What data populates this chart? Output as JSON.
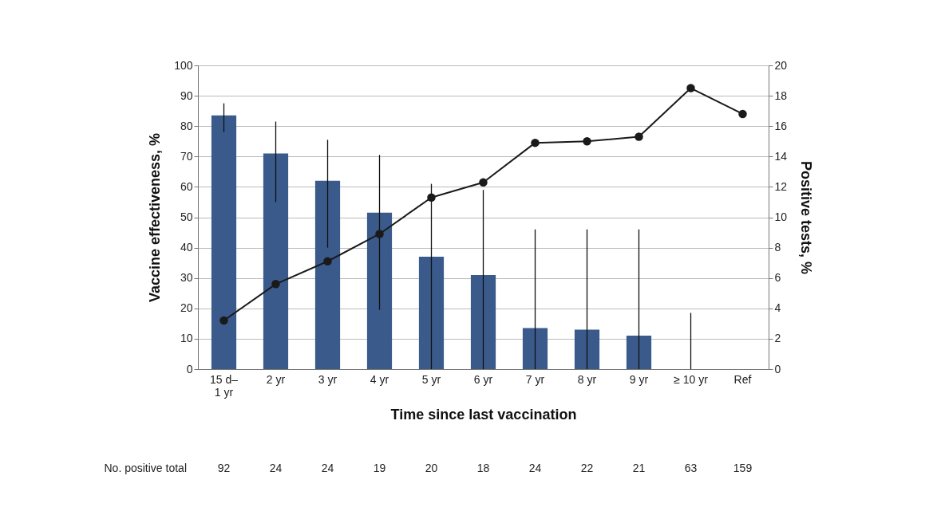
{
  "chart_data": {
    "type": "bar",
    "categories": [
      "15 d–\n1 yr",
      "2 yr",
      "3 yr",
      "4 yr",
      "5 yr",
      "6 yr",
      "7 yr",
      "8 yr",
      "9 yr",
      "≥ 10 yr",
      "Ref"
    ],
    "xlabel": "Time since last vaccination",
    "ylabel": "Vaccine effectiveness, %",
    "y2label": "Positive tests, %",
    "ylim": [
      0,
      100
    ],
    "yticks": [
      0,
      10,
      20,
      30,
      40,
      50,
      60,
      70,
      80,
      90,
      100
    ],
    "y2lim": [
      0,
      20
    ],
    "y2ticks": [
      0,
      2,
      4,
      6,
      8,
      10,
      12,
      14,
      16,
      18,
      20
    ],
    "grid": "y",
    "marker": "circle",
    "line_style": "solid",
    "series": [
      {
        "color": "#3b5a8c",
        "values": [
          83.5,
          71,
          62,
          51.5,
          37,
          31,
          13.5,
          13,
          11,
          0,
          null
        ],
        "errors": [
          [
            78,
            87.5
          ],
          [
            55,
            81.5
          ],
          [
            40,
            75.5
          ],
          [
            19.5,
            70.5
          ],
          [
            0,
            61
          ],
          [
            0,
            59
          ],
          [
            0,
            46
          ],
          [
            0,
            46
          ],
          [
            0,
            46
          ],
          [
            0,
            18.5
          ],
          null
        ]
      },
      {
        "type": "line",
        "axis": "y2",
        "color": "#1a1a1a",
        "values": [
          3.2,
          5.6,
          7.1,
          8.9,
          11.3,
          12.3,
          14.9,
          15,
          15.3,
          18.5,
          16.8
        ]
      }
    ],
    "annotations": [
      "No. positive total",
      "92",
      "24",
      "24",
      "19",
      "20",
      "18",
      "24",
      "22",
      "21",
      "63",
      "159"
    ]
  }
}
